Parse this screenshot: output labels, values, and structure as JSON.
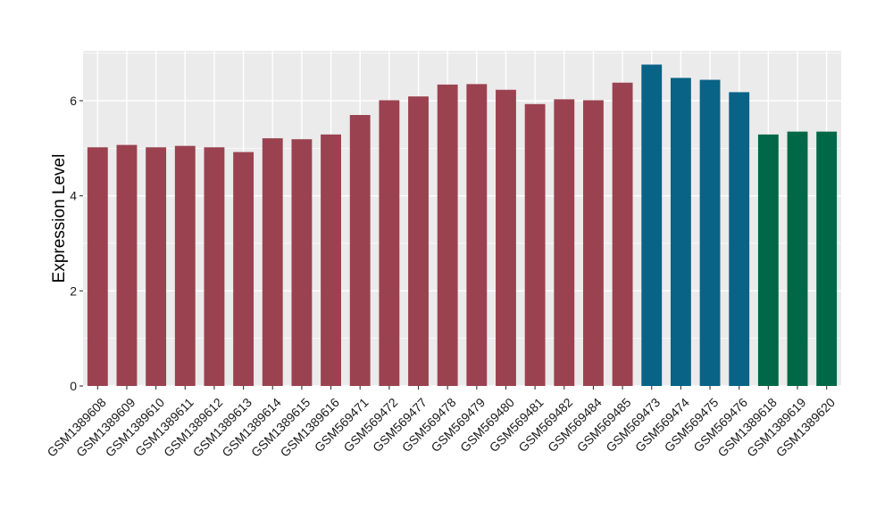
{
  "chart_data": {
    "type": "bar",
    "title": "",
    "xlabel": "",
    "ylabel": "Expression Level",
    "ylim": [
      0,
      7.05
    ],
    "yticks": [
      0,
      2,
      4,
      6
    ],
    "grid": true,
    "legend": "none",
    "categories": [
      "GSM1389608",
      "GSM1389609",
      "GSM1389610",
      "GSM1389611",
      "GSM1389612",
      "GSM1389613",
      "GSM1389614",
      "GSM1389615",
      "GSM1389616",
      "GSM569471",
      "GSM569472",
      "GSM569477",
      "GSM569478",
      "GSM569479",
      "GSM569480",
      "GSM569481",
      "GSM569482",
      "GSM569484",
      "GSM569485",
      "GSM569473",
      "GSM569474",
      "GSM569475",
      "GSM569476",
      "GSM1389618",
      "GSM1389619",
      "GSM1389620"
    ],
    "values": [
      5.02,
      5.07,
      5.02,
      5.05,
      5.02,
      4.92,
      5.21,
      5.19,
      5.29,
      5.7,
      6.01,
      6.09,
      6.34,
      6.35,
      6.23,
      5.93,
      6.03,
      6.01,
      6.38,
      6.76,
      6.48,
      6.44,
      6.18,
      5.29,
      5.35,
      5.35
    ],
    "bar_colors": [
      "#9b4250",
      "#9b4250",
      "#9b4250",
      "#9b4250",
      "#9b4250",
      "#9b4250",
      "#9b4250",
      "#9b4250",
      "#9b4250",
      "#9b4250",
      "#9b4250",
      "#9b4250",
      "#9b4250",
      "#9b4250",
      "#9b4250",
      "#9b4250",
      "#9b4250",
      "#9b4250",
      "#9b4250",
      "#086386",
      "#086386",
      "#086386",
      "#086386",
      "#006846",
      "#006846",
      "#006846"
    ],
    "panel_background": "#ebebeb",
    "grid_color": "#ffffff"
  }
}
